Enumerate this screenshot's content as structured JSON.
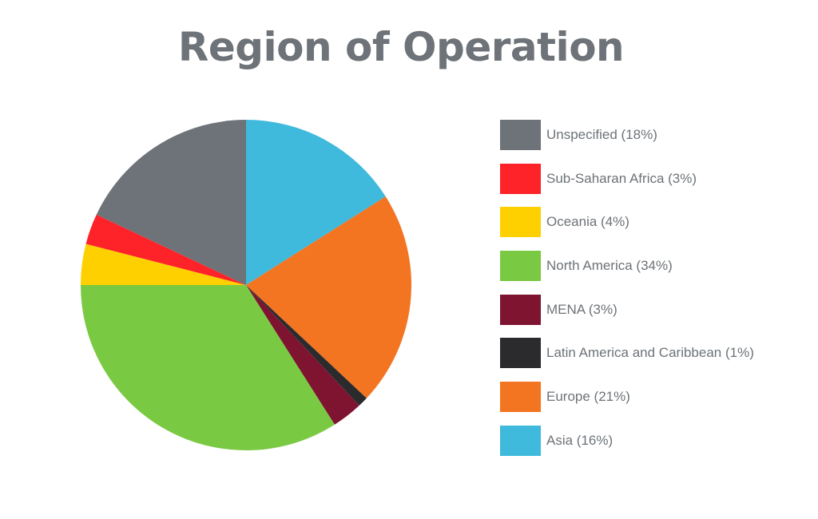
{
  "chart_data": {
    "type": "pie",
    "title": "Region of Operation",
    "slices": [
      {
        "label": "Unspecified (18%)",
        "value": 18,
        "color": "#6d7378"
      },
      {
        "label": "Sub-Saharan Africa (3%)",
        "value": 3,
        "color": "#fe2229"
      },
      {
        "label": "Oceania (4%)",
        "value": 4,
        "color": "#fed000"
      },
      {
        "label": "North America (34%)",
        "value": 34,
        "color": "#7ac943"
      },
      {
        "label": "MENA (3%)",
        "value": 3,
        "color": "#7e1430"
      },
      {
        "label": "Latin America and Caribbean (1%)",
        "value": 1,
        "color": "#2b2b2d"
      },
      {
        "label": "Europe (21%)",
        "value": 21,
        "color": "#f37521"
      },
      {
        "label": "Asia (16%)",
        "value": 16,
        "color": "#3fb9dc"
      }
    ],
    "pie_slice_order": [
      "Asia (16%)",
      "Europe (21%)",
      "Latin America and Caribbean (1%)",
      "MENA (3%)",
      "North America (34%)",
      "Oceania (4%)",
      "Sub-Saharan Africa (3%)",
      "Unspecified (18%)"
    ],
    "start_angle": "12 o'clock",
    "direction": "clockwise",
    "legend": "right"
  }
}
